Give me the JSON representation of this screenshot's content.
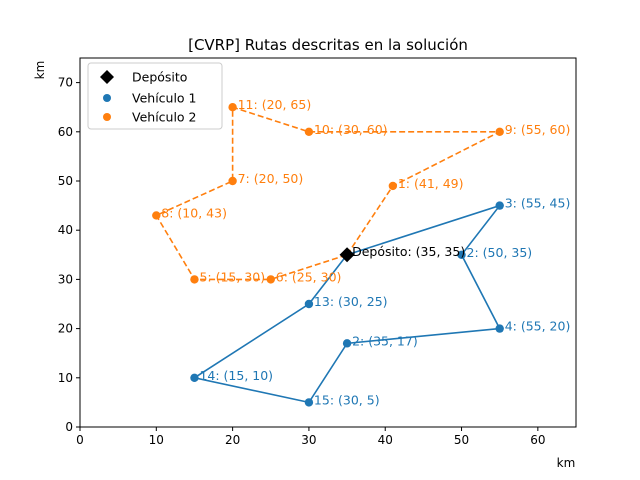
{
  "chart_data": {
    "type": "scatter",
    "title": "[CVRP] Rutas descritas en la solución",
    "xlabel": "km",
    "ylabel": "km",
    "xlim": [
      0,
      65
    ],
    "ylim": [
      0,
      75
    ],
    "xticks": [
      0,
      10,
      20,
      30,
      40,
      50,
      60
    ],
    "yticks": [
      0,
      10,
      20,
      30,
      40,
      50,
      60,
      70
    ],
    "grid": false,
    "legend_position": "top-left",
    "depot": {
      "name": "Depósito",
      "label": "Depósito: (35, 35)",
      "x": 35,
      "y": 35,
      "color": "#000000"
    },
    "series": [
      {
        "name": "Vehículo 1",
        "color": "#1f77b4",
        "line_style": "solid",
        "route": [
          35,
          3,
          2,
          4,
          2,
          15,
          14,
          13,
          35
        ],
        "points": [
          {
            "id": 3,
            "label": "3: (55, 45)",
            "x": 55,
            "y": 45
          },
          {
            "id": 2,
            "label": "2: (50, 35)",
            "x": 50,
            "y": 35
          },
          {
            "id": 4,
            "label": "4: (55, 20)",
            "x": 55,
            "y": 20
          },
          {
            "id": 2,
            "label": "2: (35, 17)",
            "x": 35,
            "y": 17
          },
          {
            "id": 15,
            "label": "15: (30, 5)",
            "x": 30,
            "y": 5
          },
          {
            "id": 14,
            "label": "14: (15, 10)",
            "x": 15,
            "y": 10
          },
          {
            "id": 13,
            "label": "13: (30, 25)",
            "x": 30,
            "y": 25
          }
        ]
      },
      {
        "name": "Vehículo 2",
        "color": "#ff7f0e",
        "line_style": "dashed",
        "points": [
          {
            "id": 1,
            "label": "1: (41, 49)",
            "x": 41,
            "y": 49
          },
          {
            "id": 9,
            "label": "9: (55, 60)",
            "x": 55,
            "y": 60
          },
          {
            "id": 10,
            "label": "10: (30, 60)",
            "x": 30,
            "y": 60
          },
          {
            "id": 11,
            "label": "11: (20, 65)",
            "x": 20,
            "y": 65
          },
          {
            "id": 7,
            "label": "7: (20, 50)",
            "x": 20,
            "y": 50
          },
          {
            "id": 8,
            "label": "8: (10, 43)",
            "x": 10,
            "y": 43
          },
          {
            "id": 5,
            "label": "5: (15, 30)",
            "x": 15,
            "y": 30
          },
          {
            "id": 6,
            "label": "6: (25, 30)",
            "x": 25,
            "y": 30
          }
        ]
      }
    ]
  }
}
